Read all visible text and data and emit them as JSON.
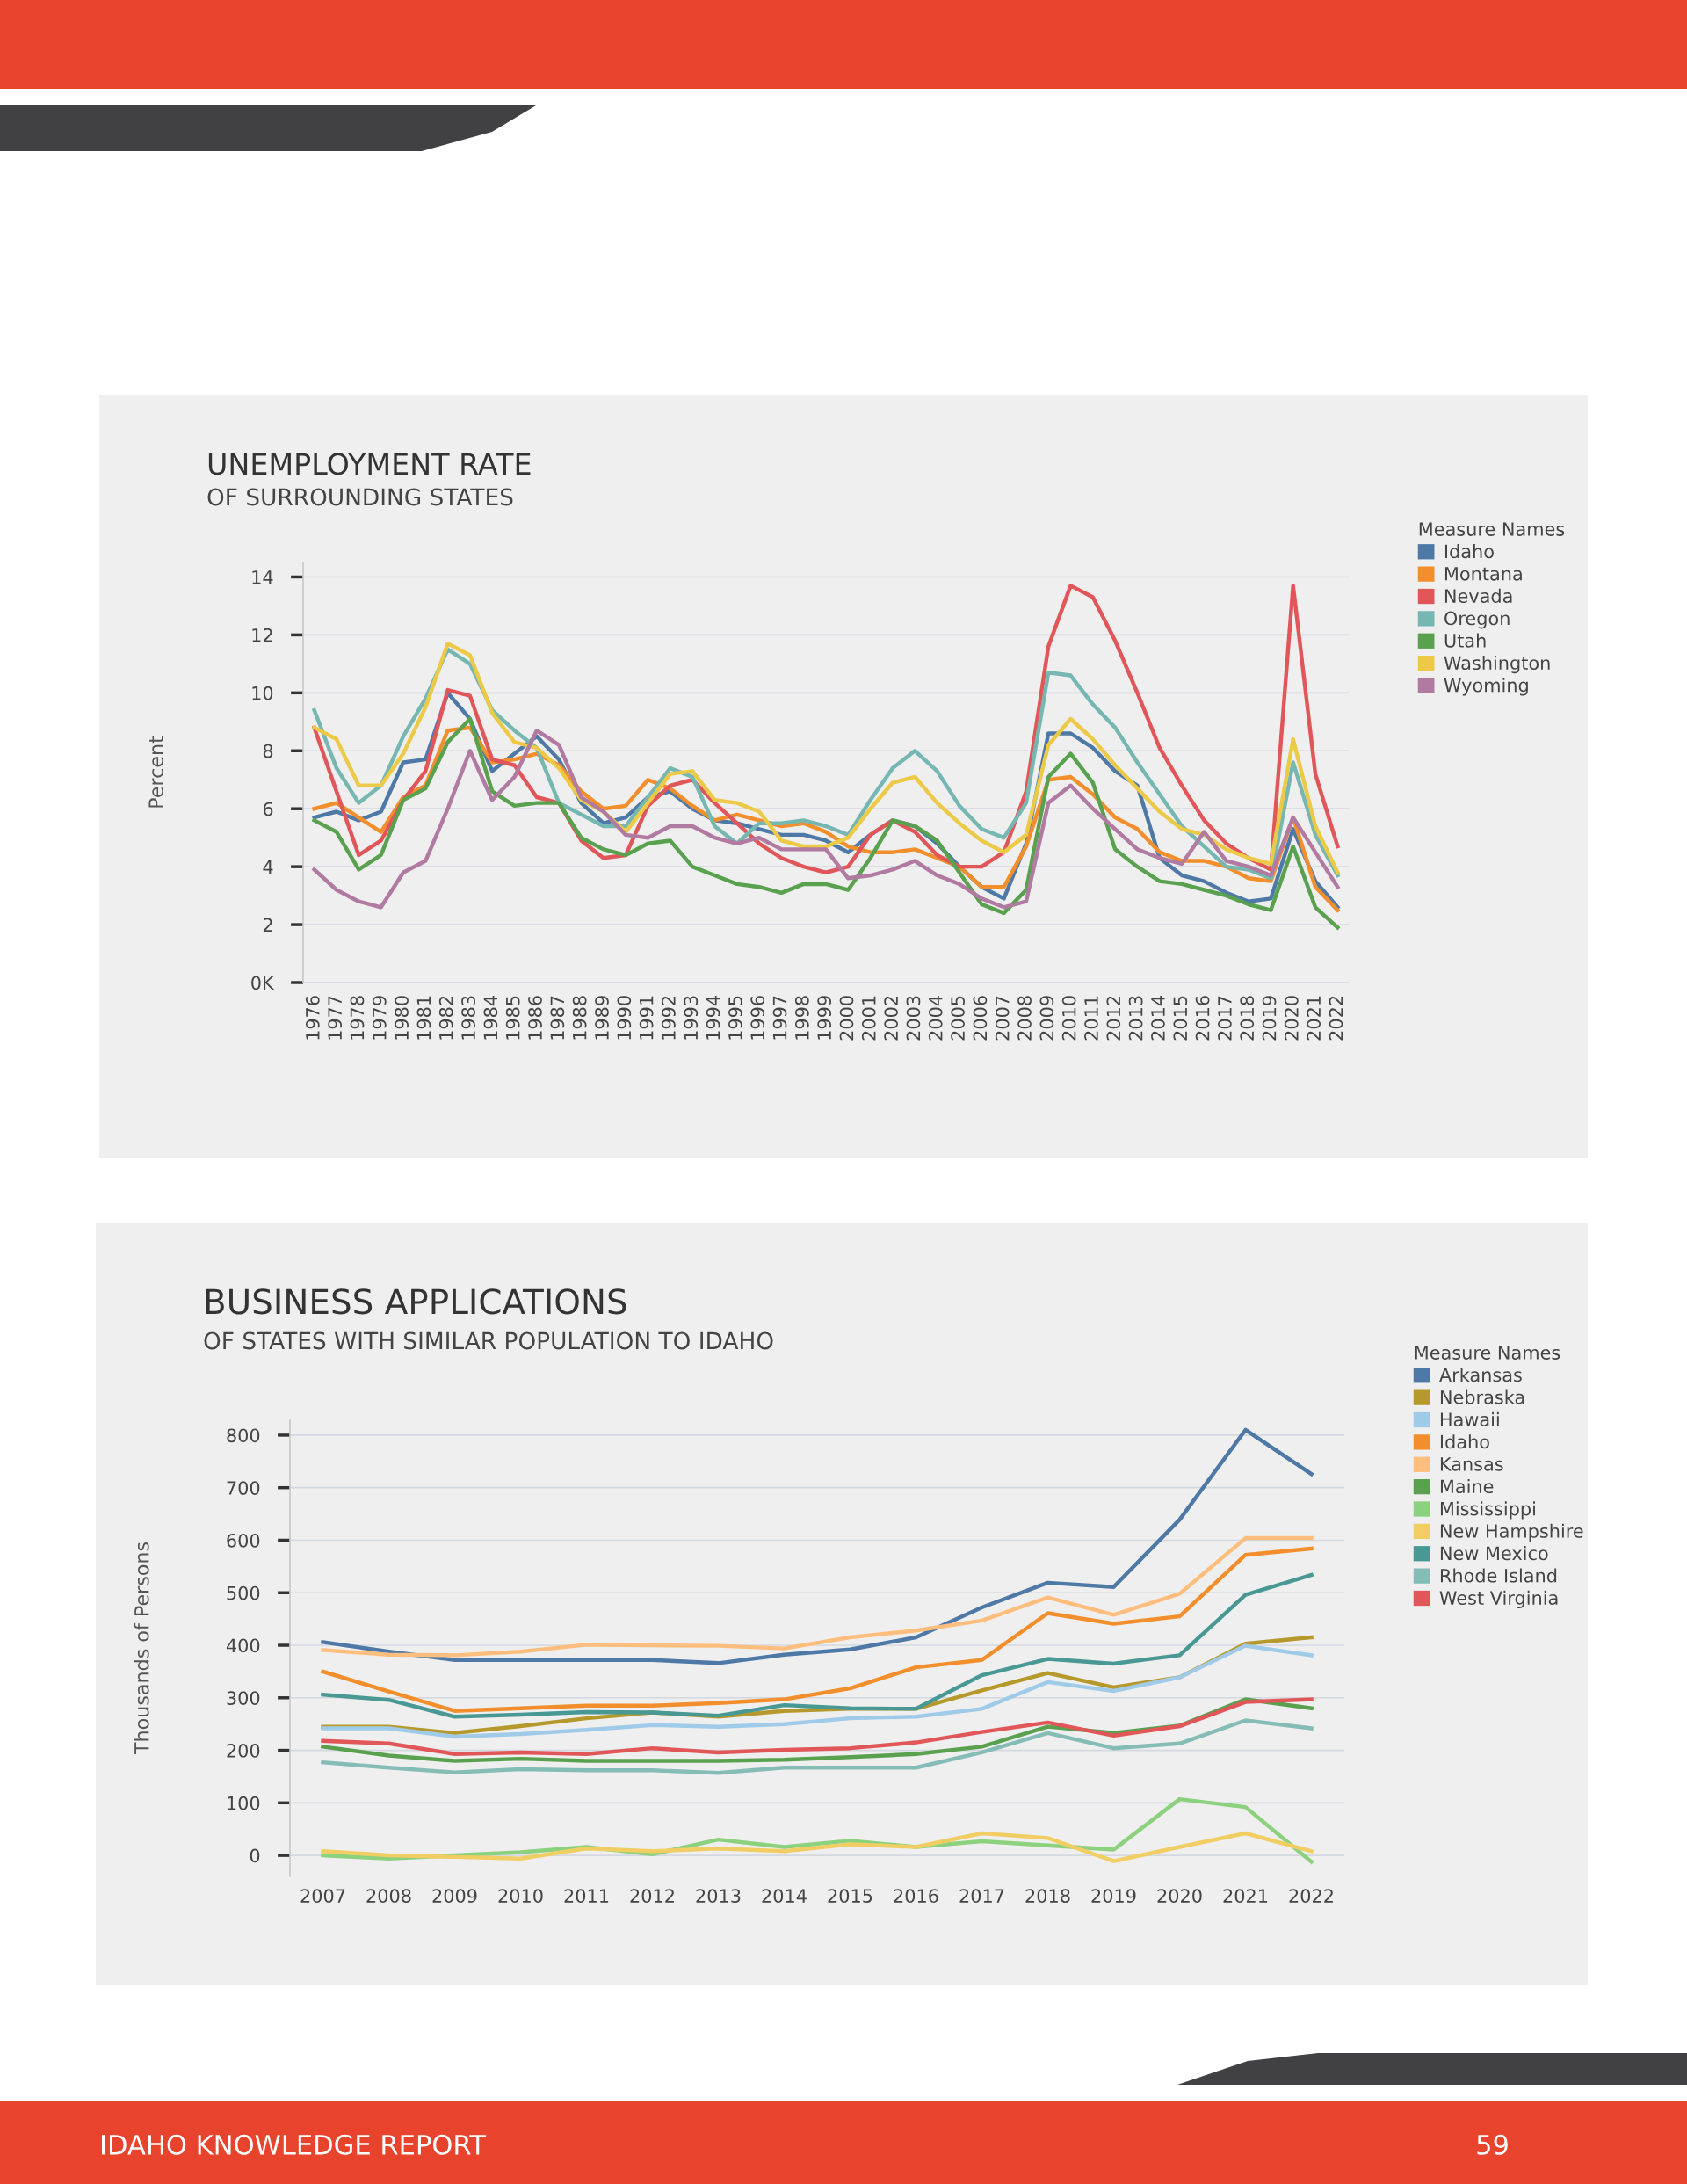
{
  "chart_data": [
    {
      "type": "line",
      "title": "UNEMPLOYMENT RATE",
      "subtitle": "OF SURROUNDING STATES",
      "ylabel": "Percent",
      "legend_title": "Measure Names",
      "legend": "right",
      "grid": "y",
      "marker": "none",
      "line_style": "solid",
      "categories": [
        "1976",
        "1977",
        "1978",
        "1979",
        "1980",
        "1981",
        "1982",
        "1983",
        "1984",
        "1985",
        "1986",
        "1987",
        "1988",
        "1989",
        "1990",
        "1991",
        "1992",
        "1993",
        "1994",
        "1995",
        "1996",
        "1997",
        "1998",
        "1999",
        "2000",
        "2001",
        "2002",
        "2003",
        "2004",
        "2005",
        "2006",
        "2007",
        "2008",
        "2009",
        "2010",
        "2011",
        "2012",
        "2013",
        "2014",
        "2015",
        "2016",
        "2017",
        "2018",
        "2019",
        "2020",
        "2021",
        "2022"
      ],
      "ylim": [
        0,
        14.5
      ],
      "yticks": [
        {
          "value": 0,
          "label": "0K"
        },
        2,
        4,
        6,
        8,
        10,
        12,
        14
      ],
      "series": [
        {
          "name": "Idaho",
          "color": "#4e79a7",
          "values": [
            5.7,
            5.9,
            5.6,
            5.9,
            7.6,
            7.7,
            10.0,
            9.1,
            7.3,
            7.9,
            8.5,
            7.7,
            6.2,
            5.5,
            5.7,
            6.4,
            6.6,
            6.0,
            5.6,
            5.5,
            5.3,
            5.1,
            5.1,
            4.9,
            4.5,
            5.1,
            5.6,
            5.4,
            4.8,
            4.0,
            3.3,
            2.9,
            4.8,
            8.6,
            8.6,
            8.1,
            7.3,
            6.8,
            4.3,
            3.7,
            3.5,
            3.1,
            2.8,
            2.9,
            5.3,
            3.5,
            2.6
          ]
        },
        {
          "name": "Montana",
          "color": "#f28e2b",
          "values": [
            6.0,
            6.2,
            5.7,
            5.2,
            6.4,
            6.8,
            8.7,
            8.8,
            7.6,
            7.7,
            7.9,
            7.5,
            6.6,
            6.0,
            6.1,
            7.0,
            6.7,
            6.1,
            5.6,
            5.8,
            5.6,
            5.4,
            5.5,
            5.2,
            4.7,
            4.5,
            4.5,
            4.6,
            4.3,
            4.0,
            3.3,
            3.3,
            4.7,
            7.0,
            7.1,
            6.5,
            5.7,
            5.3,
            4.5,
            4.2,
            4.2,
            4.0,
            3.6,
            3.5,
            5.7,
            3.3,
            2.5
          ]
        },
        {
          "name": "Nevada",
          "color": "#e15759",
          "values": [
            8.8,
            6.6,
            4.4,
            4.9,
            6.3,
            7.3,
            10.1,
            9.9,
            7.7,
            7.5,
            6.4,
            6.2,
            4.9,
            4.3,
            4.4,
            6.1,
            6.8,
            7.0,
            6.2,
            5.5,
            4.8,
            4.3,
            4.0,
            3.8,
            4.0,
            5.1,
            5.6,
            5.2,
            4.4,
            4.0,
            4.0,
            4.5,
            6.6,
            11.6,
            13.7,
            13.3,
            11.8,
            10.0,
            8.1,
            6.8,
            5.6,
            4.8,
            4.3,
            3.9,
            13.7,
            7.2,
            4.7
          ]
        },
        {
          "name": "Oregon",
          "color": "#76b7b2",
          "values": [
            9.4,
            7.4,
            6.2,
            6.8,
            8.5,
            9.8,
            11.5,
            11.0,
            9.4,
            8.7,
            8.1,
            6.2,
            5.8,
            5.4,
            5.4,
            6.4,
            7.4,
            7.1,
            5.4,
            4.8,
            5.5,
            5.5,
            5.6,
            5.4,
            5.1,
            6.3,
            7.4,
            8.0,
            7.3,
            6.1,
            5.3,
            5.0,
            6.2,
            10.7,
            10.6,
            9.6,
            8.8,
            7.6,
            6.5,
            5.4,
            4.7,
            4.0,
            3.9,
            3.6,
            7.6,
            5.1,
            3.7
          ]
        },
        {
          "name": "Utah",
          "color": "#59a14f",
          "values": [
            5.6,
            5.2,
            3.9,
            4.4,
            6.3,
            6.7,
            8.3,
            9.1,
            6.6,
            6.1,
            6.2,
            6.2,
            5.0,
            4.6,
            4.4,
            4.8,
            4.9,
            4.0,
            3.7,
            3.4,
            3.3,
            3.1,
            3.4,
            3.4,
            3.2,
            4.3,
            5.6,
            5.4,
            4.9,
            3.8,
            2.7,
            2.4,
            3.2,
            7.1,
            7.9,
            6.9,
            4.6,
            4.0,
            3.5,
            3.4,
            3.2,
            3.0,
            2.7,
            2.5,
            4.7,
            2.6,
            1.9
          ]
        },
        {
          "name": "Washington",
          "color": "#edc948",
          "values": [
            8.8,
            8.4,
            6.8,
            6.8,
            7.9,
            9.5,
            11.7,
            11.3,
            9.3,
            8.3,
            8.1,
            7.4,
            6.3,
            5.9,
            5.2,
            6.2,
            7.2,
            7.3,
            6.3,
            6.2,
            5.9,
            4.9,
            4.7,
            4.7,
            5.0,
            6.0,
            6.9,
            7.1,
            6.2,
            5.5,
            4.9,
            4.5,
            5.1,
            8.2,
            9.1,
            8.4,
            7.5,
            6.7,
            5.9,
            5.3,
            5.1,
            4.6,
            4.3,
            4.1,
            8.4,
            5.4,
            3.8
          ]
        },
        {
          "name": "Wyoming",
          "color": "#b07aa1",
          "values": [
            3.9,
            3.2,
            2.8,
            2.6,
            3.8,
            4.2,
            6.0,
            8.0,
            6.3,
            7.1,
            8.7,
            8.2,
            6.4,
            5.9,
            5.1,
            5.0,
            5.4,
            5.4,
            5.0,
            4.8,
            5.0,
            4.6,
            4.6,
            4.6,
            3.6,
            3.7,
            3.9,
            4.2,
            3.7,
            3.4,
            2.9,
            2.6,
            2.8,
            6.2,
            6.8,
            6.0,
            5.3,
            4.6,
            4.3,
            4.1,
            5.2,
            4.2,
            4.0,
            3.7,
            5.7,
            4.5,
            3.3
          ]
        }
      ]
    },
    {
      "type": "line",
      "title": "BUSINESS APPLICATIONS",
      "subtitle": "OF STATES WITH SIMILAR POPULATION TO IDAHO",
      "ylabel": "Thousands of Persons",
      "legend_title": "Measure Names",
      "legend": "right",
      "grid": "y",
      "marker": "none",
      "line_style": "solid",
      "annotations": [
        "IDAHO KNOWLEDGE REPORT",
        "59"
      ],
      "categories": [
        "2007",
        "2008",
        "2009",
        "2010",
        "2011",
        "2012",
        "2013",
        "2014",
        "2015",
        "2016",
        "2017",
        "2018",
        "2019",
        "2020",
        "2021",
        "2022"
      ],
      "ylim": [
        -40,
        830
      ],
      "yticks": [
        0,
        100,
        200,
        300,
        400,
        500,
        600,
        700,
        800
      ],
      "series": [
        {
          "name": "Arkansas",
          "color": "#4e79a7",
          "values": [
            406,
            388,
            372,
            372,
            372,
            372,
            366,
            382,
            392,
            415,
            472,
            519,
            511,
            639,
            810,
            726
          ]
        },
        {
          "name": "Nebraska",
          "color": "#b6992d",
          "values": [
            245,
            245,
            233,
            246,
            261,
            272,
            264,
            275,
            279,
            279,
            314,
            347,
            320,
            339,
            403,
            415
          ]
        },
        {
          "name": "Hawaii",
          "color": "#a0cbe8",
          "values": [
            242,
            242,
            226,
            231,
            239,
            248,
            245,
            250,
            261,
            264,
            279,
            330,
            313,
            339,
            399,
            381
          ]
        },
        {
          "name": "Idaho",
          "color": "#f28e2b",
          "values": [
            350,
            312,
            275,
            280,
            285,
            285,
            290,
            297,
            318,
            358,
            372,
            461,
            441,
            455,
            572,
            584
          ]
        },
        {
          "name": "Kansas",
          "color": "#ffbe7d",
          "values": [
            391,
            382,
            381,
            388,
            401,
            400,
            399,
            394,
            415,
            428,
            447,
            491,
            458,
            498,
            604,
            604
          ]
        },
        {
          "name": "Maine",
          "color": "#59a14f",
          "values": [
            207,
            190,
            180,
            184,
            180,
            180,
            180,
            182,
            187,
            193,
            207,
            245,
            233,
            247,
            297,
            280
          ]
        },
        {
          "name": "Mississippi",
          "color": "#8cd17d",
          "values": [
            0,
            -6,
            0,
            6,
            16,
            2,
            30,
            16,
            28,
            16,
            27,
            19,
            11,
            107,
            92,
            -12
          ]
        },
        {
          "name": "New Hampshire",
          "color": "#f1ce63",
          "values": [
            8,
            0,
            -3,
            -6,
            13,
            8,
            13,
            8,
            21,
            16,
            42,
            33,
            -11,
            16,
            42,
            8
          ]
        },
        {
          "name": "New Mexico",
          "color": "#499894",
          "values": [
            306,
            296,
            264,
            268,
            273,
            272,
            266,
            286,
            280,
            279,
            343,
            374,
            365,
            381,
            496,
            534
          ]
        },
        {
          "name": "Rhode Island",
          "color": "#86bcb6",
          "values": [
            177,
            167,
            158,
            164,
            162,
            162,
            157,
            167,
            167,
            167,
            196,
            233,
            204,
            213,
            257,
            242
          ]
        },
        {
          "name": "West Virginia",
          "color": "#e15759",
          "values": [
            218,
            213,
            193,
            196,
            193,
            204,
            196,
            201,
            204,
            215,
            235,
            253,
            228,
            246,
            292,
            297
          ]
        }
      ]
    }
  ]
}
